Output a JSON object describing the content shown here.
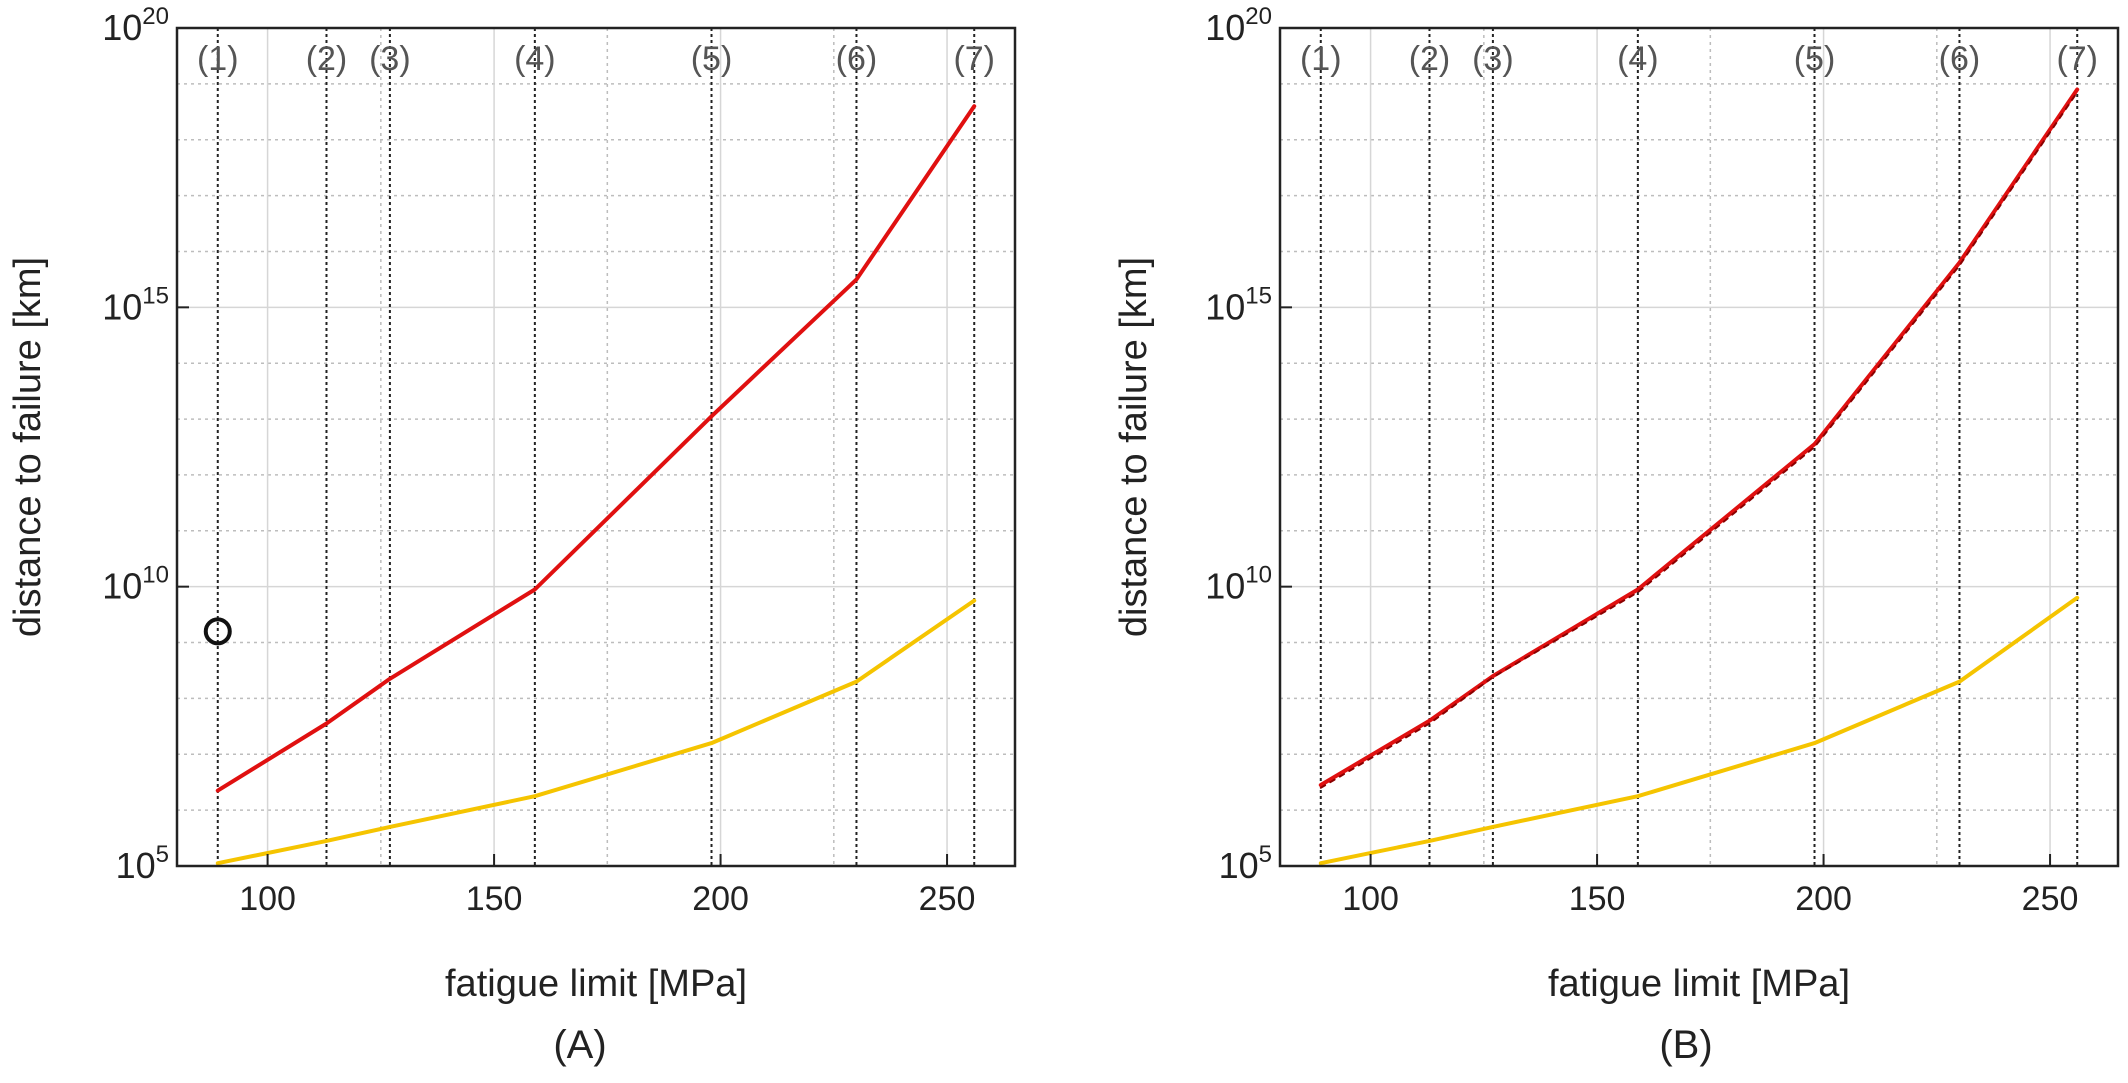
{
  "chart_data": [
    {
      "type": "line",
      "caption": "(A)",
      "xlabel": "fatigue limit [MPa]",
      "ylabel": "distance to failure [km]",
      "xlim": [
        80,
        265
      ],
      "ylim_log10": [
        5,
        20
      ],
      "y_scale": "log",
      "grid": true,
      "x_ticks": [
        100,
        150,
        200,
        250
      ],
      "y_ticks": [
        {
          "exp": 5,
          "base": "10",
          "sup": "5"
        },
        {
          "exp": 10,
          "base": "10",
          "sup": "10"
        },
        {
          "exp": 15,
          "base": "10",
          "sup": "15"
        },
        {
          "exp": 20,
          "base": "10",
          "sup": "20"
        }
      ],
      "y_minor_log10": [
        6,
        7,
        8,
        9,
        11,
        12,
        13,
        14,
        16,
        17,
        18,
        19
      ],
      "x_minor": [
        125,
        175,
        225
      ],
      "markers": [
        {
          "x": 89,
          "label": "(1)"
        },
        {
          "x": 113,
          "label": "(2)"
        },
        {
          "x": 127,
          "label": "(3)"
        },
        {
          "x": 159,
          "label": "(4)"
        },
        {
          "x": 198,
          "label": "(5)"
        },
        {
          "x": 230,
          "label": "(6)"
        },
        {
          "x": 256,
          "label": "(7)"
        }
      ],
      "series": [
        {
          "color": "#e01010",
          "dash": false,
          "x": [
            89,
            113,
            127,
            159,
            198,
            230,
            256
          ],
          "y_log10": [
            6.35,
            7.55,
            8.35,
            9.95,
            13.05,
            15.5,
            18.6
          ]
        },
        {
          "color": "#f5c400",
          "dash": false,
          "x": [
            89,
            113,
            127,
            159,
            198,
            230,
            256
          ],
          "y_log10": [
            5.05,
            5.45,
            5.7,
            6.25,
            7.2,
            8.3,
            9.75
          ]
        }
      ],
      "points": [
        {
          "x": 89,
          "y_log10": 9.2
        }
      ]
    },
    {
      "type": "line",
      "caption": "(B)",
      "xlabel": "fatigue limit [MPa]",
      "ylabel": "distance to failure [km]",
      "xlim": [
        80,
        265
      ],
      "ylim_log10": [
        5,
        20
      ],
      "y_scale": "log",
      "grid": true,
      "x_ticks": [
        100,
        150,
        200,
        250
      ],
      "y_ticks": [
        {
          "exp": 5,
          "base": "10",
          "sup": "5"
        },
        {
          "exp": 10,
          "base": "10",
          "sup": "10"
        },
        {
          "exp": 15,
          "base": "10",
          "sup": "15"
        },
        {
          "exp": 20,
          "base": "10",
          "sup": "20"
        }
      ],
      "y_minor_log10": [
        6,
        7,
        8,
        9,
        11,
        12,
        13,
        14,
        16,
        17,
        18,
        19
      ],
      "x_minor": [
        125,
        175,
        225
      ],
      "markers": [
        {
          "x": 89,
          "label": "(1)"
        },
        {
          "x": 113,
          "label": "(2)"
        },
        {
          "x": 127,
          "label": "(3)"
        },
        {
          "x": 159,
          "label": "(4)"
        },
        {
          "x": 198,
          "label": "(5)"
        },
        {
          "x": 230,
          "label": "(6)"
        },
        {
          "x": 256,
          "label": "(7)"
        }
      ],
      "series": [
        {
          "color": "#e01010",
          "dash": false,
          "x": [
            89,
            113,
            127,
            159,
            198,
            230,
            256
          ],
          "y_log10": [
            6.45,
            7.6,
            8.4,
            9.95,
            12.55,
            15.8,
            18.9
          ]
        },
        {
          "color": "#e01010",
          "dash": true,
          "x": [
            89,
            113,
            127,
            159,
            198,
            230,
            256
          ],
          "y_log10": [
            6.4,
            7.55,
            8.38,
            9.9,
            12.5,
            15.75,
            18.85
          ]
        },
        {
          "color": "#f5c400",
          "dash": false,
          "x": [
            89,
            113,
            127,
            159,
            198,
            230,
            256
          ],
          "y_log10": [
            5.05,
            5.45,
            5.7,
            6.25,
            7.2,
            8.3,
            9.8
          ]
        }
      ],
      "points": []
    }
  ]
}
